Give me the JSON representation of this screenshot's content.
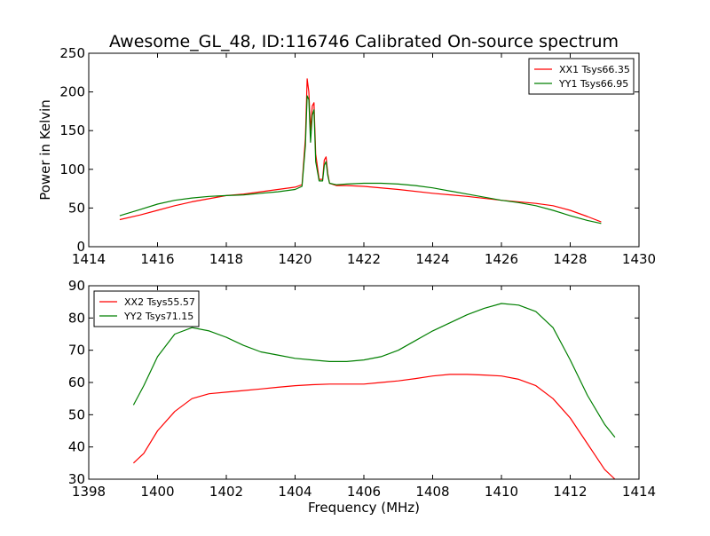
{
  "chart_data": [
    {
      "type": "line",
      "title": "Awesome_GL_48, ID:116746 Calibrated On-source spectrum",
      "xlabel": "",
      "ylabel": "Power in Kelvin",
      "xlim": [
        1414,
        1430
      ],
      "ylim": [
        0,
        250
      ],
      "xticks": [
        "1414",
        "1416",
        "1418",
        "1420",
        "1422",
        "1424",
        "1426",
        "1428",
        "1430"
      ],
      "yticks": [
        "0",
        "50",
        "100",
        "150",
        "200",
        "250"
      ],
      "legend": "top-right",
      "grid": false,
      "series": [
        {
          "name": "XX1 Tsys66.35",
          "color": "#ff0000",
          "points": [
            [
              1414.9,
              35
            ],
            [
              1415.5,
              41
            ],
            [
              1416.0,
              47
            ],
            [
              1416.5,
              53
            ],
            [
              1417.0,
              58
            ],
            [
              1417.5,
              62
            ],
            [
              1418.0,
              66
            ],
            [
              1418.5,
              68
            ],
            [
              1419.0,
              71
            ],
            [
              1419.5,
              74
            ],
            [
              1420.0,
              77
            ],
            [
              1420.2,
              80
            ],
            [
              1420.3,
              140
            ],
            [
              1420.35,
              217
            ],
            [
              1420.4,
              200
            ],
            [
              1420.45,
              150
            ],
            [
              1420.5,
              182
            ],
            [
              1420.55,
              186
            ],
            [
              1420.6,
              120
            ],
            [
              1420.7,
              87
            ],
            [
              1420.8,
              87
            ],
            [
              1420.85,
              112
            ],
            [
              1420.9,
              116
            ],
            [
              1420.95,
              95
            ],
            [
              1421.0,
              82
            ],
            [
              1421.2,
              79
            ],
            [
              1421.5,
              79
            ],
            [
              1422.0,
              78
            ],
            [
              1423.0,
              74
            ],
            [
              1424.0,
              69
            ],
            [
              1425.0,
              65
            ],
            [
              1426.0,
              60
            ],
            [
              1427.0,
              56
            ],
            [
              1427.5,
              53
            ],
            [
              1428.0,
              47
            ],
            [
              1428.5,
              39
            ],
            [
              1428.9,
              32
            ]
          ]
        },
        {
          "name": "YY1 Tsys66.95",
          "color": "#007f00",
          "points": [
            [
              1414.9,
              40
            ],
            [
              1415.5,
              48
            ],
            [
              1416.0,
              55
            ],
            [
              1416.5,
              60
            ],
            [
              1417.0,
              63
            ],
            [
              1417.5,
              65
            ],
            [
              1418.0,
              66
            ],
            [
              1418.5,
              67
            ],
            [
              1419.0,
              69
            ],
            [
              1419.5,
              71
            ],
            [
              1420.0,
              74
            ],
            [
              1420.2,
              78
            ],
            [
              1420.3,
              130
            ],
            [
              1420.35,
              195
            ],
            [
              1420.4,
              190
            ],
            [
              1420.45,
              135
            ],
            [
              1420.5,
              170
            ],
            [
              1420.55,
              177
            ],
            [
              1420.6,
              110
            ],
            [
              1420.7,
              85
            ],
            [
              1420.8,
              85
            ],
            [
              1420.85,
              105
            ],
            [
              1420.9,
              110
            ],
            [
              1420.95,
              92
            ],
            [
              1421.0,
              82
            ],
            [
              1421.2,
              80
            ],
            [
              1421.5,
              81
            ],
            [
              1422.0,
              82
            ],
            [
              1422.5,
              82
            ],
            [
              1423.0,
              81
            ],
            [
              1423.5,
              79
            ],
            [
              1424.0,
              76
            ],
            [
              1425.0,
              68
            ],
            [
              1426.0,
              60
            ],
            [
              1426.5,
              57
            ],
            [
              1427.0,
              53
            ],
            [
              1427.5,
              47
            ],
            [
              1428.0,
              40
            ],
            [
              1428.5,
              34
            ],
            [
              1428.9,
              30
            ]
          ]
        }
      ]
    },
    {
      "type": "line",
      "title": "",
      "xlabel": "Frequency (MHz)",
      "ylabel": "",
      "xlim": [
        1398,
        1414
      ],
      "ylim": [
        30,
        90
      ],
      "xticks": [
        "1398",
        "1400",
        "1402",
        "1404",
        "1406",
        "1408",
        "1410",
        "1412",
        "1414"
      ],
      "yticks": [
        "30",
        "40",
        "50",
        "60",
        "70",
        "80",
        "90"
      ],
      "legend": "top-left",
      "grid": false,
      "series": [
        {
          "name": "XX2 Tsys55.57",
          "color": "#ff0000",
          "points": [
            [
              1399.3,
              35
            ],
            [
              1399.6,
              38
            ],
            [
              1400.0,
              45
            ],
            [
              1400.5,
              51
            ],
            [
              1401.0,
              55
            ],
            [
              1401.5,
              56.5
            ],
            [
              1402.0,
              57
            ],
            [
              1402.5,
              57.5
            ],
            [
              1403.0,
              58
            ],
            [
              1403.5,
              58.5
            ],
            [
              1404.0,
              59
            ],
            [
              1404.5,
              59.3
            ],
            [
              1405.0,
              59.5
            ],
            [
              1405.5,
              59.5
            ],
            [
              1406.0,
              59.5
            ],
            [
              1406.5,
              60
            ],
            [
              1407.0,
              60.5
            ],
            [
              1407.5,
              61.2
            ],
            [
              1408.0,
              62
            ],
            [
              1408.5,
              62.5
            ],
            [
              1409.0,
              62.5
            ],
            [
              1409.5,
              62.3
            ],
            [
              1410.0,
              62
            ],
            [
              1410.5,
              61
            ],
            [
              1411.0,
              59
            ],
            [
              1411.5,
              55
            ],
            [
              1412.0,
              49
            ],
            [
              1412.5,
              41
            ],
            [
              1413.0,
              33
            ],
            [
              1413.3,
              30
            ]
          ]
        },
        {
          "name": "YY2 Tsys71.15",
          "color": "#007f00",
          "points": [
            [
              1399.3,
              53
            ],
            [
              1399.6,
              59
            ],
            [
              1400.0,
              68
            ],
            [
              1400.5,
              75
            ],
            [
              1401.0,
              77
            ],
            [
              1401.5,
              76
            ],
            [
              1402.0,
              74
            ],
            [
              1402.5,
              71.5
            ],
            [
              1403.0,
              69.5
            ],
            [
              1403.5,
              68.5
            ],
            [
              1404.0,
              67.5
            ],
            [
              1404.5,
              67
            ],
            [
              1405.0,
              66.5
            ],
            [
              1405.5,
              66.5
            ],
            [
              1406.0,
              67
            ],
            [
              1406.5,
              68
            ],
            [
              1407.0,
              70
            ],
            [
              1407.5,
              73
            ],
            [
              1408.0,
              76
            ],
            [
              1408.5,
              78.5
            ],
            [
              1409.0,
              81
            ],
            [
              1409.5,
              83
            ],
            [
              1410.0,
              84.5
            ],
            [
              1410.5,
              84
            ],
            [
              1411.0,
              82
            ],
            [
              1411.5,
              77
            ],
            [
              1412.0,
              67
            ],
            [
              1412.5,
              56
            ],
            [
              1413.0,
              47
            ],
            [
              1413.3,
              43
            ]
          ]
        }
      ]
    }
  ]
}
